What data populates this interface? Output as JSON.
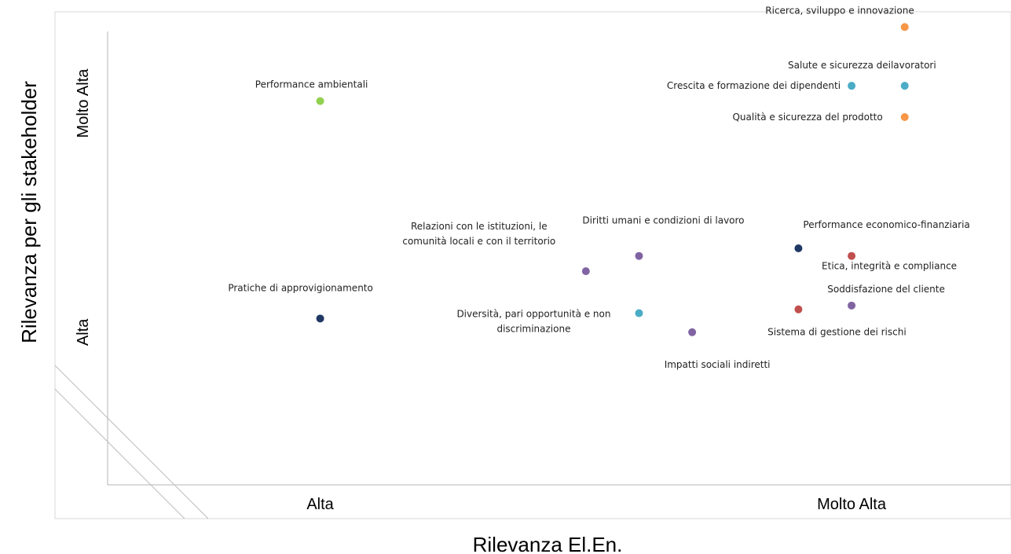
{
  "chart_data": {
    "type": "scatter",
    "xlabel": "Rilevanza El.En.",
    "ylabel": "Rilevanza per gli stakeholder",
    "x_ticks": [
      {
        "value": 1,
        "label": "Alta"
      },
      {
        "value": 6,
        "label": "Molto Alta"
      }
    ],
    "y_ticks": [
      {
        "value": 1,
        "label": "Alta"
      },
      {
        "value": 4,
        "label": "Molto Alta"
      }
    ],
    "xlim": [
      -1,
      7.5
    ],
    "ylim": [
      -1,
      5.2
    ],
    "grid": false,
    "points": [
      {
        "label": [
          "Ricerca, sviluppo e innovazione"
        ],
        "x": 6.5,
        "y": 5.0,
        "color": "#f79646",
        "anchor": "end",
        "dx": 12,
        "dy": -17
      },
      {
        "label": [
          "Salute e sicurezza deilavoratori"
        ],
        "x": 6.5,
        "y": 4.23,
        "color": "#4bacc6",
        "anchor": "end",
        "dx": 40,
        "dy": -22
      },
      {
        "label": [
          "Crescita e formazione dei dipendenti"
        ],
        "x": 6.0,
        "y": 4.23,
        "color": "#4bacc6",
        "anchor": "end",
        "dx": -14,
        "dy": 4
      },
      {
        "label": [
          "Performance ambientali"
        ],
        "x": 1.0,
        "y": 4.03,
        "color": "#92d050",
        "anchor": "middle",
        "dx": -11,
        "dy": -17
      },
      {
        "label": [
          "Qualità e sicurezza del prodotto"
        ],
        "x": 6.5,
        "y": 3.82,
        "color": "#f79646",
        "anchor": "end",
        "dx": -28,
        "dy": 4
      },
      {
        "label": [
          "Performance economico-finanziaria"
        ],
        "x": 5.5,
        "y": 2.1,
        "color": "#1f3864",
        "anchor": "start",
        "dx": 6,
        "dy": -26
      },
      {
        "label": [
          "Diritti umani e condizioni di lavoro"
        ],
        "x": 4.0,
        "y": 2.0,
        "color": "#8064a2",
        "anchor": "middle",
        "dx": 31,
        "dy": -41
      },
      {
        "label": [
          "Etica, integrità e compliance"
        ],
        "x": 6.0,
        "y": 2.0,
        "color": "#c0504d",
        "anchor": "middle",
        "dx": 48,
        "dy": 17
      },
      {
        "label": [
          "Relazioni con le istituzioni, le",
          "comunità locali e con il territorio"
        ],
        "x": 3.5,
        "y": 1.8,
        "color": "#8064a2",
        "anchor": "middle",
        "dx": -136,
        "dy": -45
      },
      {
        "label": [
          "Soddisfazione del cliente"
        ],
        "x": 6.0,
        "y": 1.35,
        "color": "#8064a2",
        "anchor": "middle",
        "dx": 44,
        "dy": -17
      },
      {
        "label": [
          "Sistema di gestione dei rischi"
        ],
        "x": 5.5,
        "y": 1.3,
        "color": "#c0504d",
        "anchor": "middle",
        "dx": 49,
        "dy": 33
      },
      {
        "label": [
          "Diversità, pari opportunità e non",
          "discriminazione"
        ],
        "x": 4.0,
        "y": 1.25,
        "color": "#4bacc6",
        "anchor": "middle",
        "dx": -134,
        "dy": 13
      },
      {
        "label": [
          "Pratiche di approvigionamento"
        ],
        "x": 1.0,
        "y": 1.18,
        "color": "#1f3864",
        "anchor": "middle",
        "dx": -25,
        "dy": -35
      },
      {
        "label": [
          "Impatti sociali indiretti"
        ],
        "x": 4.5,
        "y": 1.0,
        "color": "#8064a2",
        "anchor": "middle",
        "dx": 32,
        "dy": 45
      }
    ]
  }
}
